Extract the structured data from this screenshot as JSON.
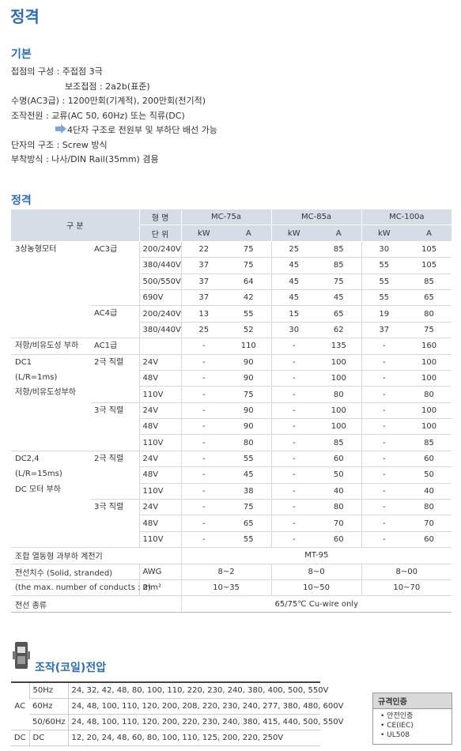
{
  "title": "정격",
  "basic": {
    "heading": "기본",
    "lines": [
      "접점의 구성 : 주접점 3극",
      "보조접점 : 2a2b(표준)",
      "수명(AC3급) : 1200만회(기계적), 200만회(전기적)",
      "조작전원 : 교류(AC 50, 60Hz) 또는 직류(DC)",
      "4단자 구조로 전원부 및 부하단 배선 가능",
      "단자의 구조 : Screw 방식",
      "부착방식 : 나사/DIN Rail(35mm) 겸용"
    ]
  },
  "rating": {
    "heading": "정격",
    "table": {
      "header": {
        "group": "구 분",
        "model_label": "형 명",
        "unit_label": "단 위",
        "models": [
          "MC-75a",
          "MC-85a",
          "MC-100a"
        ],
        "units": [
          "kW",
          "A",
          "kW",
          "A",
          "kW",
          "A"
        ]
      },
      "groups": [
        {
          "name": [
            "3상농형모터"
          ],
          "subs": [
            {
              "name": "AC3급",
              "rows": [
                {
                  "voltage": "200/240V",
                  "values": [
                    22,
                    75,
                    25,
                    85,
                    30,
                    105
                  ]
                },
                {
                  "voltage": "380/440V",
                  "values": [
                    37,
                    75,
                    45,
                    85,
                    55,
                    105
                  ]
                },
                {
                  "voltage": "500/550V",
                  "values": [
                    37,
                    64,
                    45,
                    75,
                    55,
                    85
                  ]
                },
                {
                  "voltage": "690V",
                  "values": [
                    37,
                    42,
                    45,
                    45,
                    55,
                    65
                  ]
                }
              ]
            },
            {
              "name": "AC4급",
              "rows": [
                {
                  "voltage": "200/240V",
                  "values": [
                    13,
                    55,
                    15,
                    65,
                    19,
                    80
                  ]
                },
                {
                  "voltage": "380/440V",
                  "values": [
                    25,
                    52,
                    30,
                    62,
                    37,
                    75
                  ]
                }
              ]
            }
          ]
        },
        {
          "name": [
            "저항/비유도성 부하"
          ],
          "subs": [
            {
              "name": "AC1급",
              "rows": [
                {
                  "values": [
                    "-",
                    110,
                    "-",
                    135,
                    "-",
                    160
                  ]
                }
              ]
            }
          ]
        },
        {
          "name": [
            "DC1",
            "(L/R=1ms)",
            "저항/비유도성부하"
          ],
          "subs": [
            {
              "name": "2극 직렬",
              "rows": [
                {
                  "voltage": "24V",
                  "values": [
                    "-",
                    90,
                    "-",
                    100,
                    "-",
                    100
                  ]
                },
                {
                  "voltage": "48V",
                  "values": [
                    "-",
                    90,
                    "-",
                    100,
                    "-",
                    100
                  ]
                },
                {
                  "voltage": "110V",
                  "values": [
                    "-",
                    75,
                    "-",
                    80,
                    "-",
                    80
                  ]
                }
              ]
            },
            {
              "name": "3극 직렬",
              "rows": [
                {
                  "voltage": "24V",
                  "values": [
                    "-",
                    90,
                    "-",
                    100,
                    "-",
                    100
                  ]
                },
                {
                  "voltage": "48V",
                  "values": [
                    "-",
                    90,
                    "-",
                    100,
                    "-",
                    100
                  ]
                },
                {
                  "voltage": "110V",
                  "values": [
                    "-",
                    80,
                    "-",
                    85,
                    "-",
                    85
                  ]
                }
              ]
            }
          ]
        },
        {
          "name": [
            "DC2,4",
            "(L/R=15ms)",
            "DC 모터 부하"
          ],
          "subs": [
            {
              "name": "2극 직렬",
              "rows": [
                {
                  "voltage": "24V",
                  "values": [
                    "-",
                    55,
                    "-",
                    60,
                    "-",
                    60
                  ]
                },
                {
                  "voltage": "48V",
                  "values": [
                    "-",
                    45,
                    "-",
                    50,
                    "-",
                    50
                  ]
                },
                {
                  "voltage": "110V",
                  "values": [
                    "-",
                    38,
                    "-",
                    40,
                    "-",
                    40
                  ]
                }
              ]
            },
            {
              "name": "3극 직렬",
              "rows": [
                {
                  "voltage": "24V",
                  "values": [
                    "-",
                    75,
                    "-",
                    80,
                    "-",
                    80
                  ]
                },
                {
                  "voltage": "48V",
                  "values": [
                    "-",
                    65,
                    "-",
                    70,
                    "-",
                    70
                  ]
                },
                {
                  "voltage": "110V",
                  "values": [
                    "-",
                    55,
                    "-",
                    60,
                    "-",
                    60
                  ]
                }
              ]
            }
          ]
        }
      ],
      "relay": {
        "label": "조합 열동형 과부하 계전기",
        "value": "MT-95"
      },
      "wire_size": {
        "label": "전선치수 (Solid, stranded)",
        "unit": "AWG",
        "values": [
          "8~2",
          "8~0",
          "8~00"
        ]
      },
      "wire_note": {
        "label": "(the max. number of conducts : 2)",
        "unit": "mm²",
        "values": [
          "10~35",
          "10~50",
          "10~70"
        ]
      },
      "wire_type": {
        "label": "전선 종류",
        "value": "65/75℃ Cu-wire only"
      }
    }
  },
  "coil": {
    "heading": "조작(코일)전압",
    "rows": [
      {
        "type": "AC",
        "freq": "50Hz",
        "voltages": "24, 32, 42, 48, 80, 100, 110, 220, 230, 240, 380, 400, 500, 550V"
      },
      {
        "freq": "60Hz",
        "voltages": "24, 48, 100, 110, 120, 200, 208, 220, 230, 240, 277, 380, 480, 600V"
      },
      {
        "freq": "50/60Hz",
        "voltages": "24, 48, 100, 110, 120, 200, 220, 230, 240, 380, 415, 440, 500, 550V"
      },
      {
        "type": "DC",
        "freq": "DC",
        "voltages": "12, 20, 24, 48, 60, 80, 100, 110, 125, 200, 220, 250V"
      }
    ]
  },
  "certification": {
    "heading": "규격인증",
    "items": [
      "안전인증",
      "CE(IEC)",
      "UL508"
    ]
  }
}
